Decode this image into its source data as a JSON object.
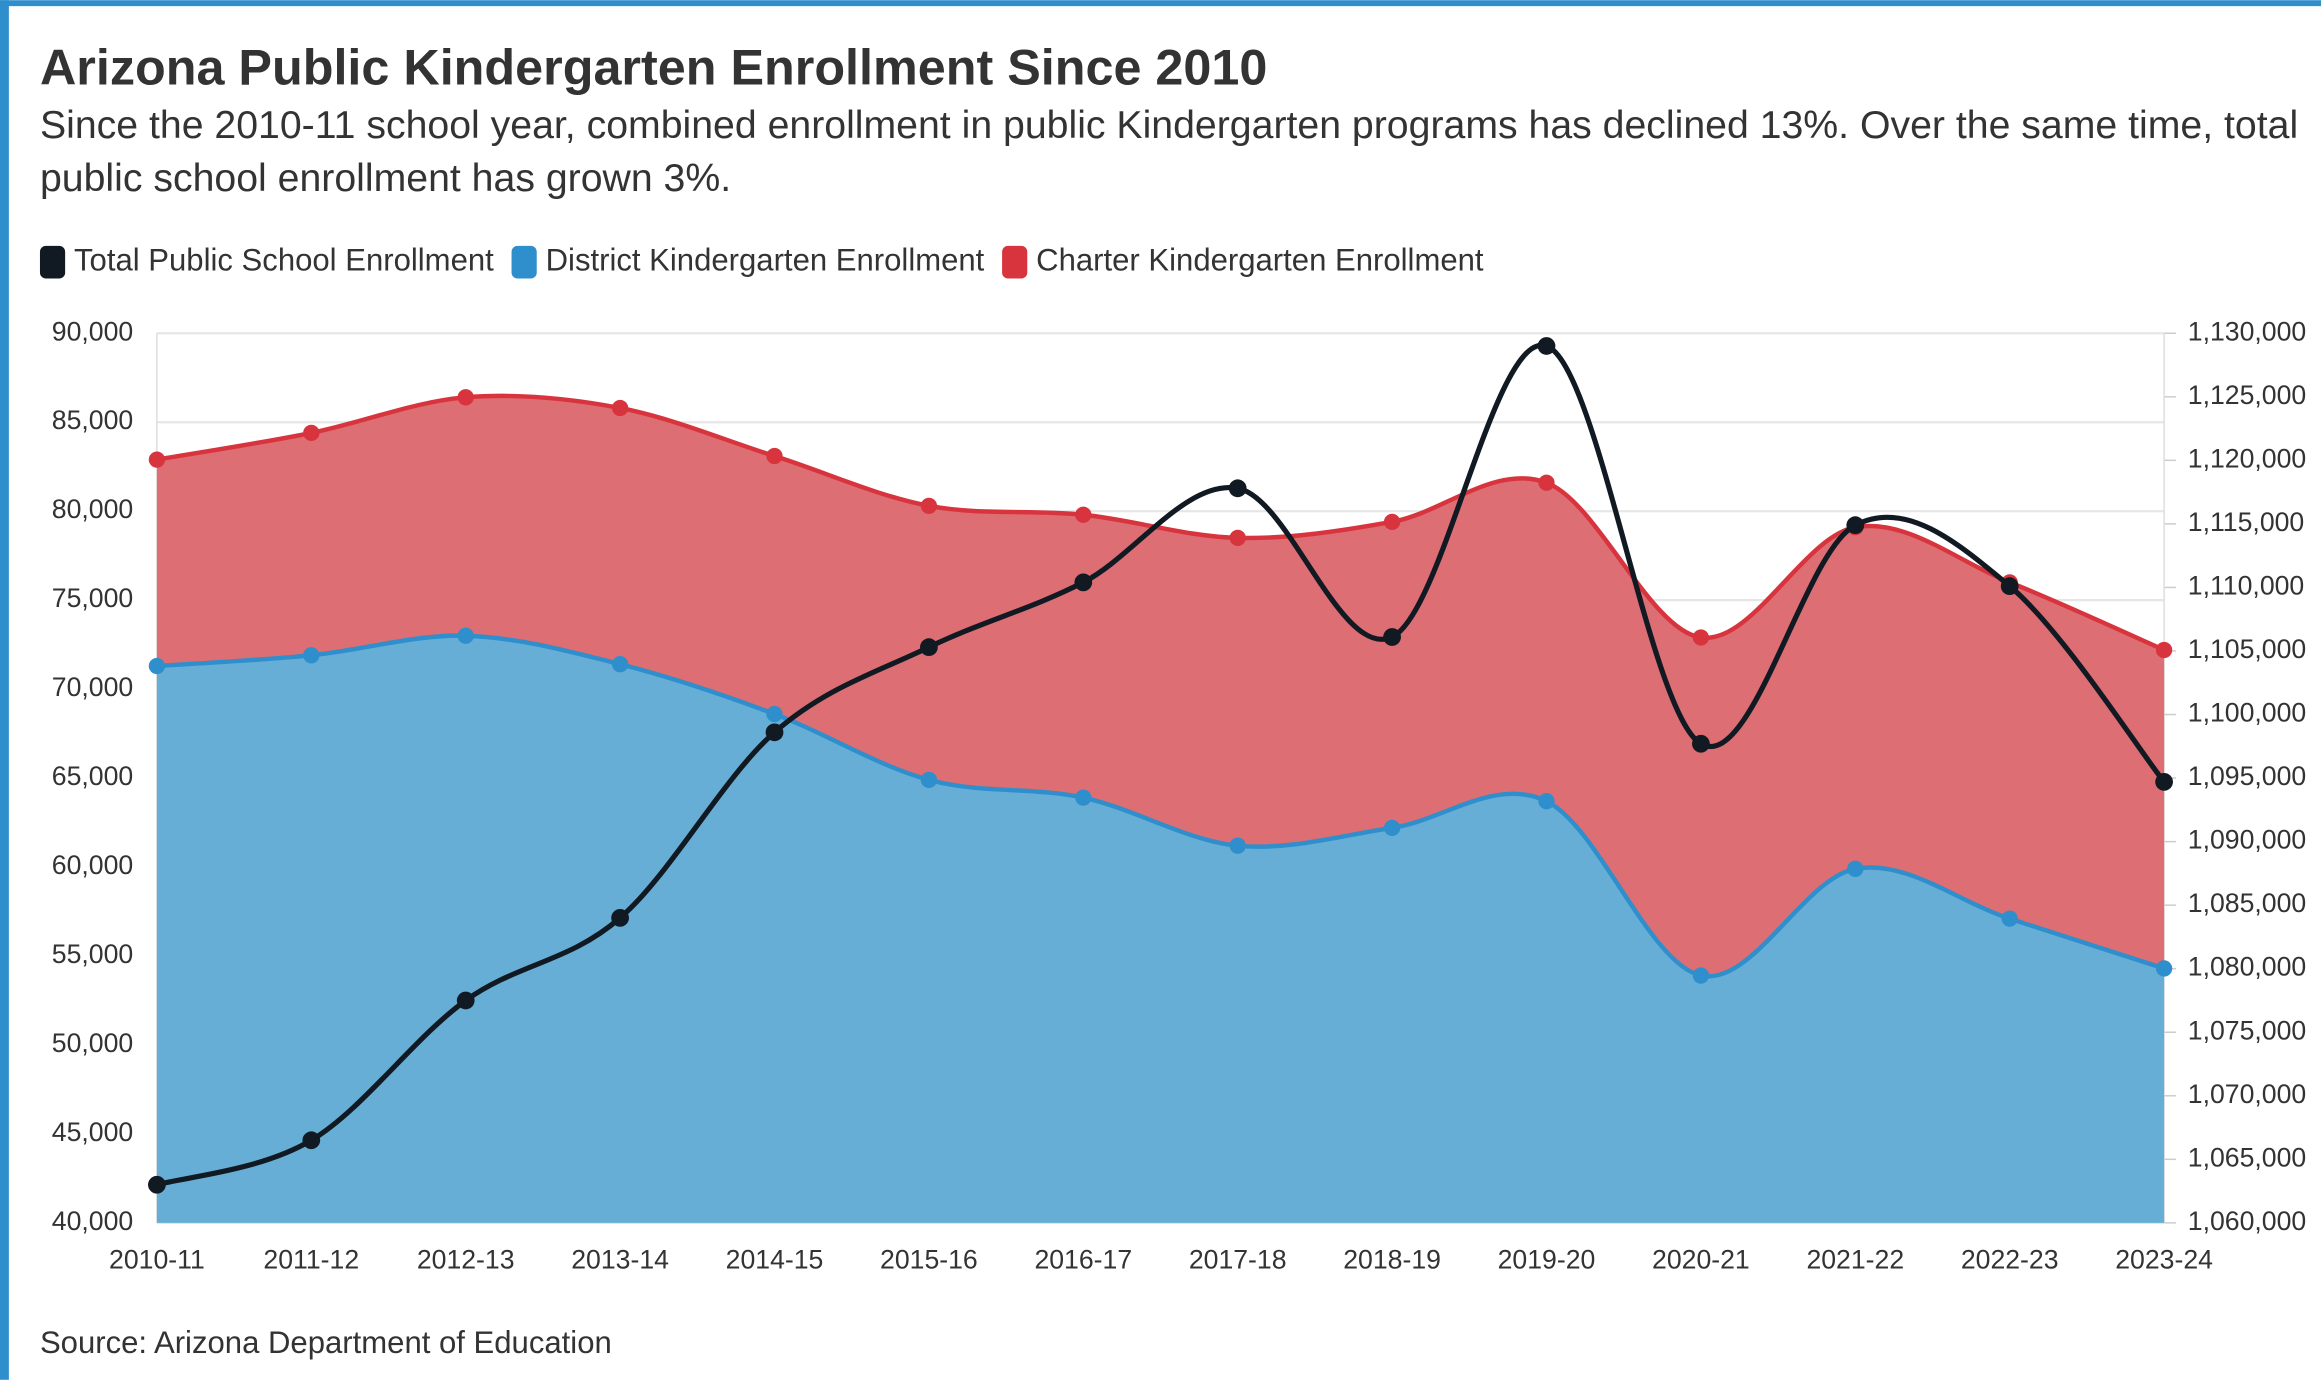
{
  "chart_data": {
    "type": "area",
    "title": "Arizona Public Kindergarten Enrollment Since 2010",
    "subtitle": "Since the 2010-11 school year, combined enrollment in public Kindergarten programs has declined 13%. Over the same time, total public school enrollment has grown 3%.",
    "source": "Source: Arizona Department of Education",
    "categories": [
      "2010-11",
      "2011-12",
      "2012-13",
      "2013-14",
      "2014-15",
      "2015-16",
      "2016-17",
      "2017-18",
      "2018-19",
      "2019-20",
      "2020-21",
      "2021-22",
      "2022-23",
      "2023-24"
    ],
    "stacked": true,
    "series": [
      {
        "name": "Total Public School Enrollment",
        "type": "line",
        "axis": "y2",
        "color": "#111a22",
        "values": [
          1063000,
          1066500,
          1077500,
          1084000,
          1098600,
          1105300,
          1110400,
          1117800,
          1106100,
          1129000,
          1097700,
          1114900,
          1110100,
          1094700
        ]
      },
      {
        "name": "District Kindergarten Enrollment",
        "type": "area",
        "color": "#2e8fcc",
        "fill": "#66aed6",
        "values": [
          71300,
          71900,
          73000,
          71400,
          68600,
          64900,
          63900,
          61200,
          62200,
          63700,
          53900,
          59900,
          57100,
          54300
        ]
      },
      {
        "name": "Charter Kindergarten Enrollment",
        "type": "area",
        "color": "#d8343e",
        "fill": "#dd6e73",
        "values": [
          11600,
          12500,
          13400,
          14400,
          14500,
          15400,
          15900,
          17300,
          17200,
          17900,
          19000,
          19200,
          18900,
          17900
        ]
      }
    ],
    "ylim": [
      40000,
      90000
    ],
    "yticks": [
      {
        "value": 40000,
        "label": "40,000"
      },
      {
        "value": 45000,
        "label": "45,000"
      },
      {
        "value": 50000,
        "label": "50,000"
      },
      {
        "value": 55000,
        "label": "55,000"
      },
      {
        "value": 60000,
        "label": "60,000"
      },
      {
        "value": 65000,
        "label": "65,000"
      },
      {
        "value": 70000,
        "label": "70,000"
      },
      {
        "value": 75000,
        "label": "75,000"
      },
      {
        "value": 80000,
        "label": "80,000"
      },
      {
        "value": 85000,
        "label": "85,000"
      },
      {
        "value": 90000,
        "label": "90,000"
      }
    ],
    "y2lim": [
      1060000,
      1130000
    ],
    "y2ticks": [
      {
        "value": 1060000,
        "label": "1,060,000"
      },
      {
        "value": 1065000,
        "label": "1,065,000"
      },
      {
        "value": 1070000,
        "label": "1,070,000"
      },
      {
        "value": 1075000,
        "label": "1,075,000"
      },
      {
        "value": 1080000,
        "label": "1,080,000"
      },
      {
        "value": 1085000,
        "label": "1,085,000"
      },
      {
        "value": 1090000,
        "label": "1,090,000"
      },
      {
        "value": 1095000,
        "label": "1,095,000"
      },
      {
        "value": 1100000,
        "label": "1,100,000"
      },
      {
        "value": 1105000,
        "label": "1,105,000"
      },
      {
        "value": 1110000,
        "label": "1,110,000"
      },
      {
        "value": 1115000,
        "label": "1,115,000"
      },
      {
        "value": 1120000,
        "label": "1,120,000"
      },
      {
        "value": 1125000,
        "label": "1,125,000"
      },
      {
        "value": 1130000,
        "label": "1,130,000"
      }
    ],
    "grid": true,
    "legend": "top-left"
  }
}
